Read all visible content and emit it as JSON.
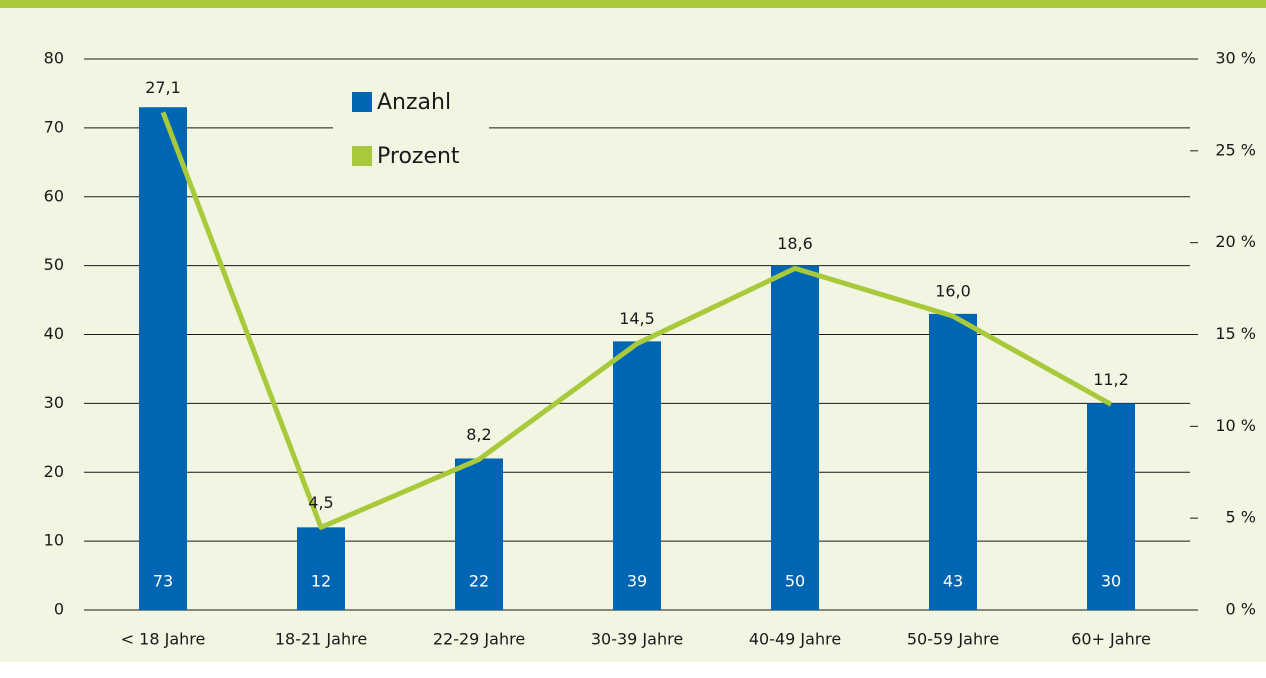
{
  "chart_data": {
    "type": "bar_line",
    "categories": [
      "< 18 Jahre",
      "18-21 Jahre",
      "22-29 Jahre",
      "30-39 Jahre",
      "40-49 Jahre",
      "50-59 Jahre",
      "60+ Jahre"
    ],
    "series": [
      {
        "name": "Anzahl",
        "type": "bar",
        "color": "#0066b3",
        "values": [
          73,
          12,
          22,
          39,
          50,
          43,
          30
        ]
      },
      {
        "name": "Prozent",
        "type": "line",
        "axis": "y2",
        "color": "#a8c93a",
        "values": [
          27.1,
          4.5,
          8.2,
          14.5,
          18.6,
          16.0,
          11.2
        ],
        "value_labels": [
          "27,1",
          "4,5",
          "8,2",
          "14,5",
          "18,6",
          "16,0",
          "11,2"
        ]
      }
    ],
    "ylim": [
      0,
      80
    ],
    "yticks": [
      0,
      10,
      20,
      30,
      40,
      50,
      60,
      70,
      80
    ],
    "y2lim": [
      0,
      30
    ],
    "y2ticks": [
      {
        "value": 0,
        "label": "0 %"
      },
      {
        "value": 5,
        "label": "5 %"
      },
      {
        "value": 10,
        "label": "10 %"
      },
      {
        "value": 15,
        "label": "15 %"
      },
      {
        "value": 20,
        "label": "20 %"
      },
      {
        "value": 25,
        "label": "25 %"
      },
      {
        "value": 30,
        "label": "30 %"
      }
    ],
    "grid": true,
    "legend": "top-left"
  }
}
